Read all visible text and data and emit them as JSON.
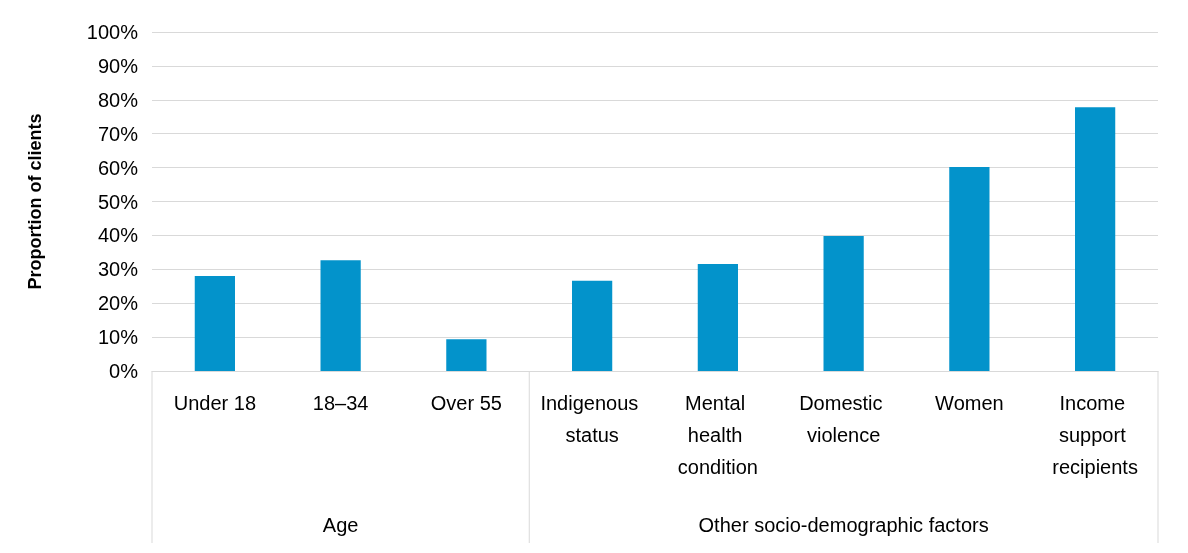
{
  "chart_data": {
    "type": "bar",
    "ylabel": "Proportion of clients",
    "categories": [
      "Under 18",
      "18–34",
      "Over 55",
      "Indigenous status",
      "Mental health condition",
      "Domestic violence",
      "Women",
      "Income support recipients"
    ],
    "values": [
      28,
      32.7,
      9.4,
      26.6,
      31.6,
      39.8,
      60.2,
      77.8
    ],
    "color": "#0393cb",
    "ylim": [
      0,
      100
    ],
    "yticks": [
      {
        "value": 0,
        "label": "0%"
      },
      {
        "value": 10,
        "label": "10%"
      },
      {
        "value": 20,
        "label": "20%"
      },
      {
        "value": 30,
        "label": "30%"
      },
      {
        "value": 40,
        "label": "40%"
      },
      {
        "value": 50,
        "label": "50%"
      },
      {
        "value": 60,
        "label": "60%"
      },
      {
        "value": 70,
        "label": "70%"
      },
      {
        "value": 80,
        "label": "80%"
      },
      {
        "value": 90,
        "label": "90%"
      },
      {
        "value": 100,
        "label": "100%"
      }
    ],
    "grid": "y",
    "annotations": [
      "Age",
      "Other socio-demographic factors"
    ]
  }
}
